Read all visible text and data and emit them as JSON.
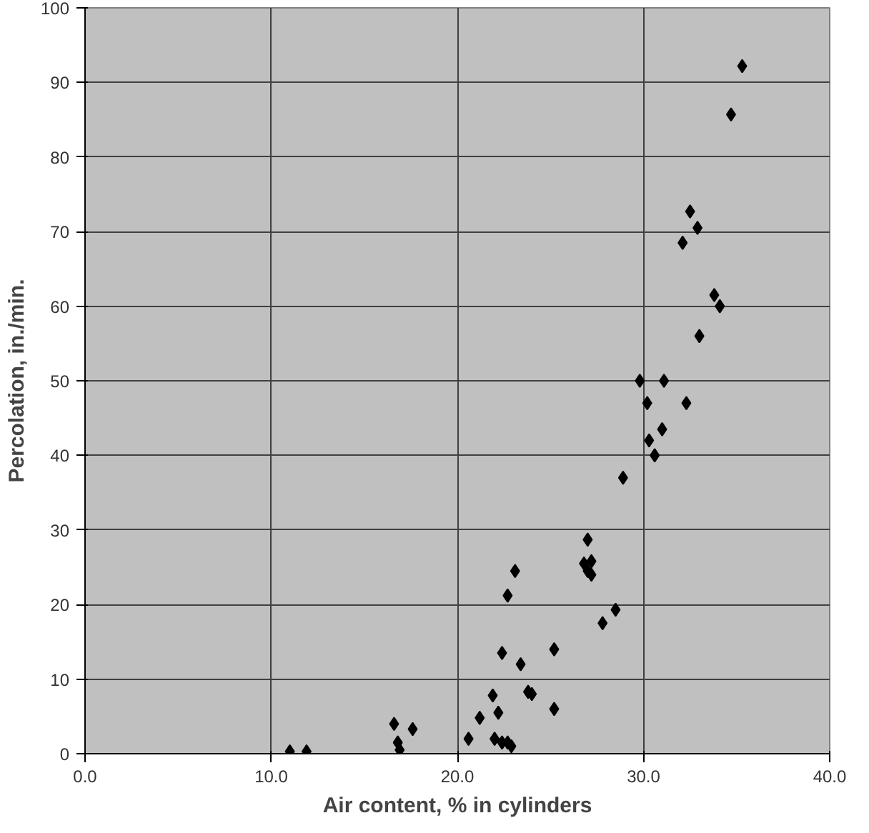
{
  "chart_data": {
    "type": "scatter",
    "xlabel": "Air content, % in cylinders",
    "ylabel": "Percolation, in./min.",
    "x": [
      11.0,
      11.9,
      16.6,
      16.8,
      16.9,
      17.6,
      20.6,
      21.2,
      21.9,
      22.0,
      22.2,
      22.4,
      22.4,
      22.7,
      22.9,
      22.7,
      23.1,
      23.4,
      23.8,
      24.0,
      25.2,
      25.2,
      26.8,
      27.0,
      27.0,
      27.2,
      27.2,
      27.8,
      28.5,
      28.9,
      29.8,
      30.2,
      30.3,
      30.6,
      31.0,
      31.1,
      32.3,
      32.1,
      32.5,
      32.9,
      33.0,
      33.8,
      34.1,
      34.7,
      35.3
    ],
    "values": [
      0.3,
      0.3,
      4,
      1.5,
      0.5,
      3.3,
      2,
      4.8,
      7.8,
      2,
      5.5,
      13.5,
      1.5,
      1.5,
      1,
      21.2,
      24.5,
      12,
      8.3,
      8,
      14,
      6,
      25.5,
      28.7,
      24.5,
      25.8,
      24,
      17.5,
      19.3,
      37,
      50,
      47,
      42,
      40,
      43.5,
      50,
      47,
      68.5,
      72.7,
      70.5,
      56,
      61.5,
      60,
      85.7,
      92.2
    ],
    "color": "#000000",
    "marker": "diamond",
    "grid": true,
    "xlim": [
      0,
      40
    ],
    "xticks": [
      {
        "value": 0,
        "label": "0.0"
      },
      {
        "value": 10,
        "label": "10.0"
      },
      {
        "value": 20,
        "label": "20.0"
      },
      {
        "value": 30,
        "label": "30.0"
      },
      {
        "value": 40,
        "label": "40.0"
      }
    ],
    "ylim": [
      0,
      100
    ],
    "yticks": [
      0,
      10,
      20,
      30,
      40,
      50,
      60,
      70,
      80,
      90,
      100
    ]
  }
}
